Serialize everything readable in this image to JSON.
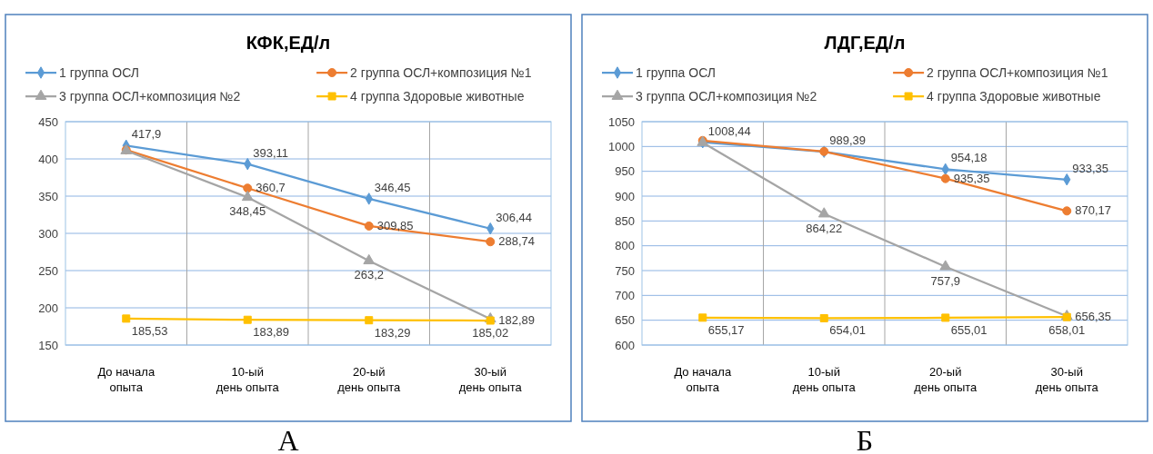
{
  "chart_data": [
    {
      "type": "line",
      "title": "КФК,ЕД/л",
      "categories": [
        "До начала\nопыта",
        "10-ый\nдень опыта",
        "20-ый\nдень опыта",
        "30-ый\nдень опыта"
      ],
      "series": [
        {
          "name": "1 группа ОСЛ",
          "color": "#5b9bd5",
          "marker": "diamond",
          "values": [
            417.9,
            393.11,
            346.45,
            306.44
          ],
          "value_labels": [
            "417,9",
            "393,11",
            "346,45",
            "306,44"
          ]
        },
        {
          "name": "2 группа ОСЛ+композиция №1",
          "color": "#ed7d31",
          "marker": "circle",
          "values": [
            412,
            360.7,
            309.85,
            288.74
          ],
          "value_labels": [
            null,
            "360,7",
            "309,85",
            "288,74"
          ]
        },
        {
          "name": "3 группа ОСЛ+композиция №2",
          "color": "#a5a5a5",
          "marker": "triangle",
          "values": [
            411,
            348.45,
            263.2,
            185.02
          ],
          "value_labels": [
            null,
            "348,45",
            "263,2",
            "185,02"
          ]
        },
        {
          "name": "4 группа Здоровые животные",
          "color": "#ffc000",
          "marker": "square",
          "values": [
            185.53,
            183.89,
            183.29,
            182.89
          ],
          "value_labels": [
            "185,53",
            "183,89",
            "183,29",
            "182,89"
          ]
        }
      ],
      "ylim": [
        150,
        450
      ],
      "yticks": [
        150,
        200,
        250,
        300,
        350,
        400,
        450
      ],
      "grid": true,
      "legend": "top",
      "annotations": [
        "А"
      ]
    },
    {
      "type": "line",
      "title": "ЛДГ,ЕД/л",
      "categories": [
        "До начала\nопыта",
        "10-ый\nдень опыта",
        "20-ый\nдень опыта",
        "30-ый\nдень опыта"
      ],
      "series": [
        {
          "name": "1 группа ОСЛ",
          "color": "#5b9bd5",
          "marker": "diamond",
          "values": [
            1008.44,
            989.39,
            954.18,
            933.35
          ],
          "value_labels": [
            "1008,44",
            "989,39",
            "954,18",
            "933,35"
          ]
        },
        {
          "name": "2 группа ОСЛ+композиция №1",
          "color": "#ed7d31",
          "marker": "circle",
          "values": [
            1012,
            990,
            935.35,
            870.17
          ],
          "value_labels": [
            null,
            null,
            "935,35",
            "870,17"
          ]
        },
        {
          "name": "3 группа ОСЛ+композиция №2",
          "color": "#a5a5a5",
          "marker": "triangle",
          "values": [
            1008,
            864.22,
            757.9,
            658.01
          ],
          "value_labels": [
            null,
            "864,22",
            "757,9",
            "658,01"
          ]
        },
        {
          "name": "4 группа Здоровые животные",
          "color": "#ffc000",
          "marker": "square",
          "values": [
            655.17,
            654.01,
            655.01,
            656.35
          ],
          "value_labels": [
            "655,17",
            "654,01",
            "655,01",
            "656,35"
          ]
        }
      ],
      "ylim": [
        600,
        1050
      ],
      "yticks": [
        600,
        650,
        700,
        750,
        800,
        850,
        900,
        950,
        1000,
        1050
      ],
      "grid": true,
      "legend": "top",
      "annotations": [
        "Б"
      ]
    }
  ]
}
